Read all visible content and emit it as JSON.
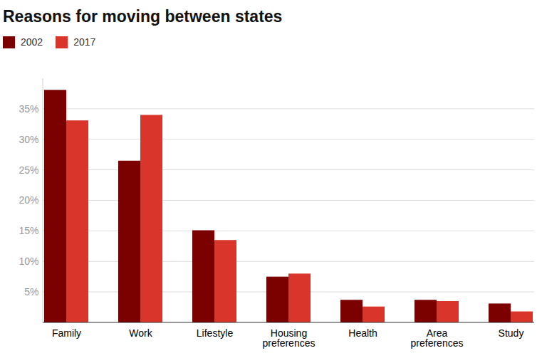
{
  "chart_data": {
    "type": "bar",
    "title": "Reasons for moving between states",
    "categories": [
      "Family",
      "Work",
      "Lifestyle",
      "Housing preferences",
      "Health",
      "Area preferences",
      "Study"
    ],
    "series": [
      {
        "name": "2002",
        "color": "#7b0000",
        "values": [
          38.1,
          26.5,
          15.1,
          7.5,
          3.7,
          3.7,
          3.1
        ]
      },
      {
        "name": "2017",
        "color": "#d9352b",
        "values": [
          33.1,
          34.0,
          13.5,
          8.0,
          2.6,
          3.5,
          1.8
        ]
      }
    ],
    "ylim": [
      0,
      40
    ],
    "yticks": [
      {
        "value": 5,
        "label": "5%"
      },
      {
        "value": 10,
        "label": "10%"
      },
      {
        "value": 15,
        "label": "15%"
      },
      {
        "value": 20,
        "label": "20%"
      },
      {
        "value": 25,
        "label": "25%"
      },
      {
        "value": 30,
        "label": "30%"
      },
      {
        "value": 35,
        "label": "35%"
      }
    ],
    "grid": true,
    "legend": "top-left"
  }
}
